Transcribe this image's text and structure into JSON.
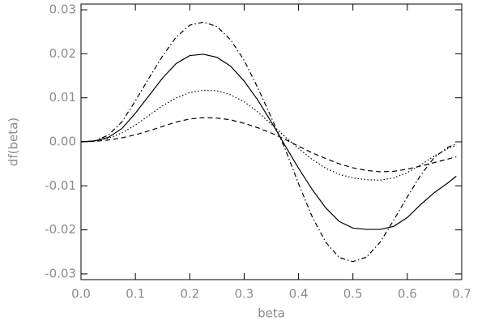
{
  "chart_data": {
    "type": "line",
    "x_label": "beta",
    "y_label": "df(beta)",
    "x": [
      0,
      0.025,
      0.05,
      0.075,
      0.1,
      0.125,
      0.15,
      0.175,
      0.2,
      0.225,
      0.25,
      0.275,
      0.3,
      0.325,
      0.35,
      0.375,
      0.4,
      0.425,
      0.45,
      0.475,
      0.5,
      0.525,
      0.55,
      0.575,
      0.6,
      0.625,
      0.65,
      0.675,
      0.69
    ],
    "series": [
      {
        "color": "#000000",
        "linestyle": "solid",
        "values": [
          0,
          0.0002,
          0.001,
          0.003,
          0.0065,
          0.0105,
          0.0145,
          0.0178,
          0.0196,
          0.0199,
          0.0192,
          0.0172,
          0.0138,
          0.0095,
          0.0045,
          -0.0008,
          -0.006,
          -0.0108,
          -0.015,
          -0.0181,
          -0.0196,
          -0.0199,
          -0.0199,
          -0.0192,
          -0.0172,
          -0.0142,
          -0.0115,
          -0.0093,
          -0.0078
        ]
      },
      {
        "color": "#000000",
        "linestyle": "dashdot",
        "values": [
          0,
          0.0002,
          0.0015,
          0.0045,
          0.0093,
          0.0145,
          0.0195,
          0.0238,
          0.0265,
          0.0272,
          0.0262,
          0.0232,
          0.0185,
          0.0123,
          0.0055,
          -0.0015,
          -0.0095,
          -0.017,
          -0.0228,
          -0.0263,
          -0.0272,
          -0.0262,
          -0.0228,
          -0.0178,
          -0.0125,
          -0.0075,
          -0.0035,
          -0.0012,
          -0.0005
        ]
      },
      {
        "color": "#000000",
        "linestyle": "dotted",
        "values": [
          0,
          0.0002,
          0.0008,
          0.002,
          0.0038,
          0.006,
          0.0082,
          0.01,
          0.0112,
          0.0117,
          0.0116,
          0.0107,
          0.0091,
          0.0068,
          0.004,
          0.0012,
          -0.0015,
          -0.004,
          -0.006,
          -0.0074,
          -0.0082,
          -0.0086,
          -0.0087,
          -0.0082,
          -0.007,
          -0.0052,
          -0.0032,
          -0.0015,
          -0.0008
        ]
      },
      {
        "color": "#000000",
        "linestyle": "dashed",
        "values": [
          0,
          0.0001,
          0.0004,
          0.0009,
          0.0016,
          0.0025,
          0.0035,
          0.0045,
          0.0052,
          0.0055,
          0.0054,
          0.005,
          0.0042,
          0.0032,
          0.002,
          0.0006,
          -0.001,
          -0.0025,
          -0.0038,
          -0.005,
          -0.0059,
          -0.0065,
          -0.0068,
          -0.0067,
          -0.0062,
          -0.0055,
          -0.0047,
          -0.0039,
          -0.0034
        ]
      }
    ],
    "xlim": [
      0,
      0.7
    ],
    "ylim": [
      -0.0313,
      0.0313
    ],
    "xticks": [
      {
        "value": 0,
        "label": "0.0"
      },
      0.1,
      0.2,
      0.3,
      0.4,
      0.5,
      0.6,
      0.7
    ],
    "yticks": [
      -0.03,
      -0.02,
      -0.01,
      {
        "value": 0,
        "label": "0.00"
      },
      0.01,
      0.02,
      0.03
    ]
  }
}
